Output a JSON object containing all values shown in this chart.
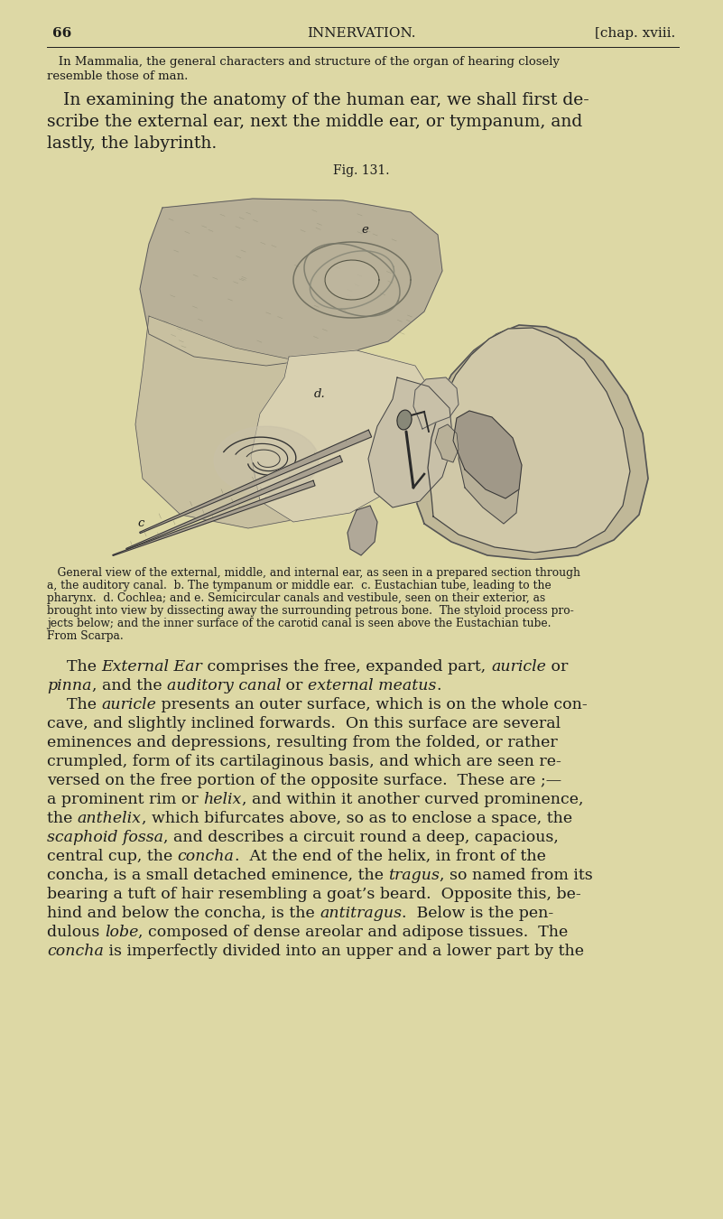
{
  "background_color": "#ddd8a5",
  "page_number": "66",
  "header_center": "INNERVATION.",
  "header_right": "[chap. xviii.",
  "intro_small_lines": [
    "   In Mammalia, the general characters and structure of the organ of hearing closely",
    "resemble those of man."
  ],
  "intro_large_lines": [
    "   In examining the anatomy of the human ear, we shall first de-",
    "scribe the external ear, next the middle ear, or tympanum, and",
    "lastly, the labyrinth."
  ],
  "fig_title": "Fig. 131.",
  "caption_lines": [
    "   General view of the external, middle, and internal ear, as seen in a prepared section through",
    "a, the auditory canal.  b. The tympanum or middle ear.  c. Eustachian tube, leading to the",
    "pharynx.  d. Cochlea; and e. Semicircular canals and vestibule, seen on their exterior, as",
    "brought into view by dissecting away the surrounding petrous bone.  The styloid process pro-",
    "jects below; and the inner surface of the carotid canal is seen above the Eustachian tube.",
    "From Scarpa."
  ],
  "main_lines": [
    [
      [
        "    The ",
        false
      ],
      [
        "External Ear",
        true
      ],
      [
        " comprises the free, expanded part, ",
        false
      ],
      [
        "auricle",
        true
      ],
      [
        " or",
        false
      ]
    ],
    [
      [
        "pinna",
        true
      ],
      [
        ", and the ",
        false
      ],
      [
        "auditory canal",
        true
      ],
      [
        " or ",
        false
      ],
      [
        "external meatus",
        true
      ],
      [
        ".",
        false
      ]
    ],
    [
      [
        "    The ",
        false
      ],
      [
        "auricle",
        true
      ],
      [
        " presents an outer surface, which is on the whole con-",
        false
      ]
    ],
    [
      [
        "cave, and slightly inclined forwards.  On this surface are several",
        false
      ]
    ],
    [
      [
        "eminences and depressions, resulting from the folded, or rather",
        false
      ]
    ],
    [
      [
        "crumpled, form of its cartilaginous basis, and which are seen re-",
        false
      ]
    ],
    [
      [
        "versed on the free portion of the opposite surface.  These are ;—",
        false
      ]
    ],
    [
      [
        "a prominent rim or ",
        false
      ],
      [
        "helix",
        true
      ],
      [
        ", and within it another curved prominence,",
        false
      ]
    ],
    [
      [
        "the ",
        false
      ],
      [
        "anthelix",
        true
      ],
      [
        ", which bifurcates above, so as to enclose a space, the",
        false
      ]
    ],
    [
      [
        "scaphoid fossa",
        true
      ],
      [
        ", and describes a circuit round a deep, capacious,",
        false
      ]
    ],
    [
      [
        "central cup, the ",
        false
      ],
      [
        "concha",
        true
      ],
      [
        ".  At the end of the helix, in front of the",
        false
      ]
    ],
    [
      [
        "concha, is a small detached eminence, the ",
        false
      ],
      [
        "tragus",
        true
      ],
      [
        ", so named from its",
        false
      ]
    ],
    [
      [
        "bearing a tuft of hair resembling a goat’s beard.  Opposite this, be-",
        false
      ]
    ],
    [
      [
        "hind and below the concha, is the ",
        false
      ],
      [
        "antitragus",
        true
      ],
      [
        ".  Below is the pen-",
        false
      ]
    ],
    [
      [
        "dulous ",
        false
      ],
      [
        "lobe",
        true
      ],
      [
        ", composed of dense areolar and adipose tissues.  The",
        false
      ]
    ],
    [
      [
        "concha",
        true
      ],
      [
        " is imperfectly divided into an upper and a lower part by the",
        false
      ]
    ]
  ],
  "text_color": "#1c1c1c",
  "header_fontsize": 11,
  "small_body_fontsize": 9.5,
  "large_body_fontsize": 13.5,
  "caption_fontsize": 8.8,
  "main_fontsize": 12.5
}
